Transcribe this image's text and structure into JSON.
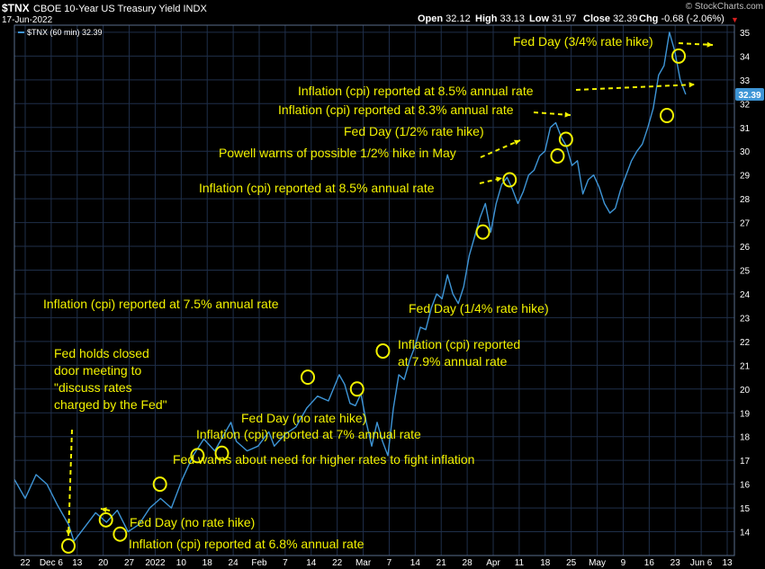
{
  "header": {
    "symbol": "$TNX",
    "name": "CBOE 10-Year US Treasury Yield INDX",
    "date": "17-Jun-2022",
    "stats": [
      {
        "label": "Open",
        "value": "32.12"
      },
      {
        "label": "High",
        "value": "33.13"
      },
      {
        "label": "Low",
        "value": "31.97"
      },
      {
        "label": "Close",
        "value": "32.39"
      },
      {
        "label": "Chg",
        "value": "-0.68 (-2.06%)"
      }
    ],
    "change_arrow": "▼",
    "watermark": "© StockCharts.com"
  },
  "legend": {
    "label": "$TNX (60 min) 32.39"
  },
  "last_value": "32.39",
  "colors": {
    "background": "#000000",
    "grid": "#1f2f4a",
    "line": "#3e95d6",
    "annotation": "#f2f200",
    "text": "#ffffff",
    "down": "#d82020",
    "price_tag": "#3e95d6"
  },
  "chart_data": {
    "type": "line",
    "title": "CBOE 10-Year US Treasury Yield INDX",
    "xlabel": "",
    "ylabel": "",
    "ylim": [
      13,
      35.3
    ],
    "grid": true,
    "y_ticks": [
      14,
      15,
      16,
      17,
      18,
      19,
      20,
      21,
      22,
      23,
      24,
      25,
      26,
      27,
      28,
      29,
      30,
      31,
      32,
      33,
      34,
      35
    ],
    "x_ticks": [
      "22",
      "Dec 6",
      "13",
      "20",
      "27",
      "2022",
      "10",
      "18",
      "24",
      "Feb",
      "7",
      "14",
      "22",
      "Mar",
      "7",
      "14",
      "21",
      "28",
      "Apr",
      "11",
      "18",
      "25",
      "May",
      "9",
      "16",
      "23",
      "Jun 6",
      "13"
    ],
    "series": [
      {
        "name": "$TNX (60 min)",
        "points": [
          [
            0,
            16.2
          ],
          [
            2,
            15.4
          ],
          [
            4,
            16.4
          ],
          [
            6,
            16.0
          ],
          [
            8,
            15.1
          ],
          [
            10,
            14.3
          ],
          [
            11,
            13.6
          ],
          [
            13,
            14.2
          ],
          [
            15,
            14.8
          ],
          [
            17,
            14.4
          ],
          [
            19,
            14.9
          ],
          [
            21,
            14.0
          ],
          [
            23,
            14.3
          ],
          [
            25,
            15.0
          ],
          [
            27,
            15.4
          ],
          [
            29,
            15.0
          ],
          [
            31,
            16.2
          ],
          [
            33,
            17.2
          ],
          [
            35,
            17.9
          ],
          [
            37,
            17.4
          ],
          [
            39,
            18.2
          ],
          [
            40,
            18.6
          ],
          [
            41,
            17.8
          ],
          [
            43,
            17.4
          ],
          [
            45,
            17.6
          ],
          [
            47,
            18.2
          ],
          [
            48,
            17.6
          ],
          [
            50,
            18.1
          ],
          [
            52,
            18.4
          ],
          [
            54,
            19.2
          ],
          [
            56,
            19.7
          ],
          [
            58,
            19.5
          ],
          [
            60,
            20.6
          ],
          [
            61,
            20.2
          ],
          [
            62,
            19.4
          ],
          [
            63,
            19.3
          ],
          [
            64,
            19.8
          ],
          [
            65,
            18.6
          ],
          [
            66,
            17.6
          ],
          [
            67,
            18.6
          ],
          [
            68,
            17.8
          ],
          [
            69,
            17.2
          ],
          [
            70,
            19.2
          ],
          [
            71,
            20.6
          ],
          [
            72,
            20.4
          ],
          [
            73,
            21.2
          ],
          [
            74,
            21.8
          ],
          [
            75,
            22.6
          ],
          [
            76,
            22.5
          ],
          [
            77,
            23.4
          ],
          [
            78,
            24.0
          ],
          [
            79,
            23.8
          ],
          [
            80,
            24.8
          ],
          [
            81,
            24.0
          ],
          [
            82,
            23.6
          ],
          [
            83,
            24.3
          ],
          [
            84,
            25.6
          ],
          [
            85,
            26.4
          ],
          [
            86,
            27.2
          ],
          [
            87,
            27.8
          ],
          [
            88,
            26.6
          ],
          [
            89,
            27.8
          ],
          [
            90,
            28.6
          ],
          [
            91,
            28.9
          ],
          [
            92,
            28.4
          ],
          [
            93,
            27.8
          ],
          [
            94,
            28.3
          ],
          [
            95,
            29.0
          ],
          [
            96,
            29.2
          ],
          [
            97,
            29.8
          ],
          [
            98,
            30.0
          ],
          [
            99,
            31.0
          ],
          [
            100,
            31.2
          ],
          [
            101,
            30.6
          ],
          [
            102,
            30.2
          ],
          [
            103,
            29.4
          ],
          [
            104,
            29.6
          ],
          [
            105,
            28.2
          ],
          [
            106,
            28.8
          ],
          [
            107,
            29.0
          ],
          [
            108,
            28.5
          ],
          [
            109,
            27.8
          ],
          [
            110,
            27.4
          ],
          [
            111,
            27.6
          ],
          [
            112,
            28.4
          ],
          [
            113,
            29.0
          ],
          [
            114,
            29.6
          ],
          [
            115,
            30.0
          ],
          [
            116,
            30.3
          ],
          [
            117,
            31.0
          ],
          [
            118,
            31.8
          ],
          [
            119,
            33.2
          ],
          [
            120,
            33.6
          ],
          [
            121,
            35.0
          ],
          [
            122,
            34.2
          ],
          [
            123,
            33.0
          ],
          [
            124,
            32.39
          ]
        ]
      }
    ],
    "annotations": [
      {
        "text": "Fed holds closed\ndoor meeting to\n\"discuss rates\ncharged by the Fed\"",
        "x": 11.5,
        "y": 13.6
      },
      {
        "text": "Fed Day (no rate hike)",
        "x": 18.5,
        "y": 14.6
      },
      {
        "text": "Inflation (cpi) reported at 6.8% annual rate",
        "x": 21,
        "y": 13.9
      },
      {
        "text": "Fed warns about need for higher rates to fight inflation",
        "x": 29.5,
        "y": 15.9
      },
      {
        "text": "Inflation (cpi) reported at 7.5% annual rate",
        "x": 59.5,
        "y": 20.5
      },
      {
        "text": "Inflation (cpi) reported at 7% annual rate",
        "x": 37.2,
        "y": 17.2
      },
      {
        "text": "Fed Day (no rate hike)",
        "x": 43.5,
        "y": 17.3
      },
      {
        "text": "Fed Day (1/4% rate hike)",
        "x": 76.5,
        "y": 21.6
      },
      {
        "text": "Inflation (cpi) reported\nat 7.9% annual rate",
        "x": 73.2,
        "y": 20.1
      },
      {
        "text": "Inflation (cpi) reported at 8.5% annual rate",
        "x": 95.3,
        "y": 26.6
      },
      {
        "text": "Powell warns of possible 1/2% hike in May",
        "x": 95.0,
        "y": 26.6
      },
      {
        "text": "Fed Day (1/2% rate hike)",
        "x": 99.5,
        "y": 28.7
      },
      {
        "text": "Inflation (cpi) reported at 8.3% annual rate",
        "x": 113.5,
        "y": 30.4
      },
      {
        "text": "Inflation (cpi) reported at 8.5% annual rate",
        "x": 131.5,
        "y": 31.5
      },
      {
        "text": "Fed Day (3/4% rate hike)",
        "x": 134,
        "y": 34.0
      }
    ]
  }
}
